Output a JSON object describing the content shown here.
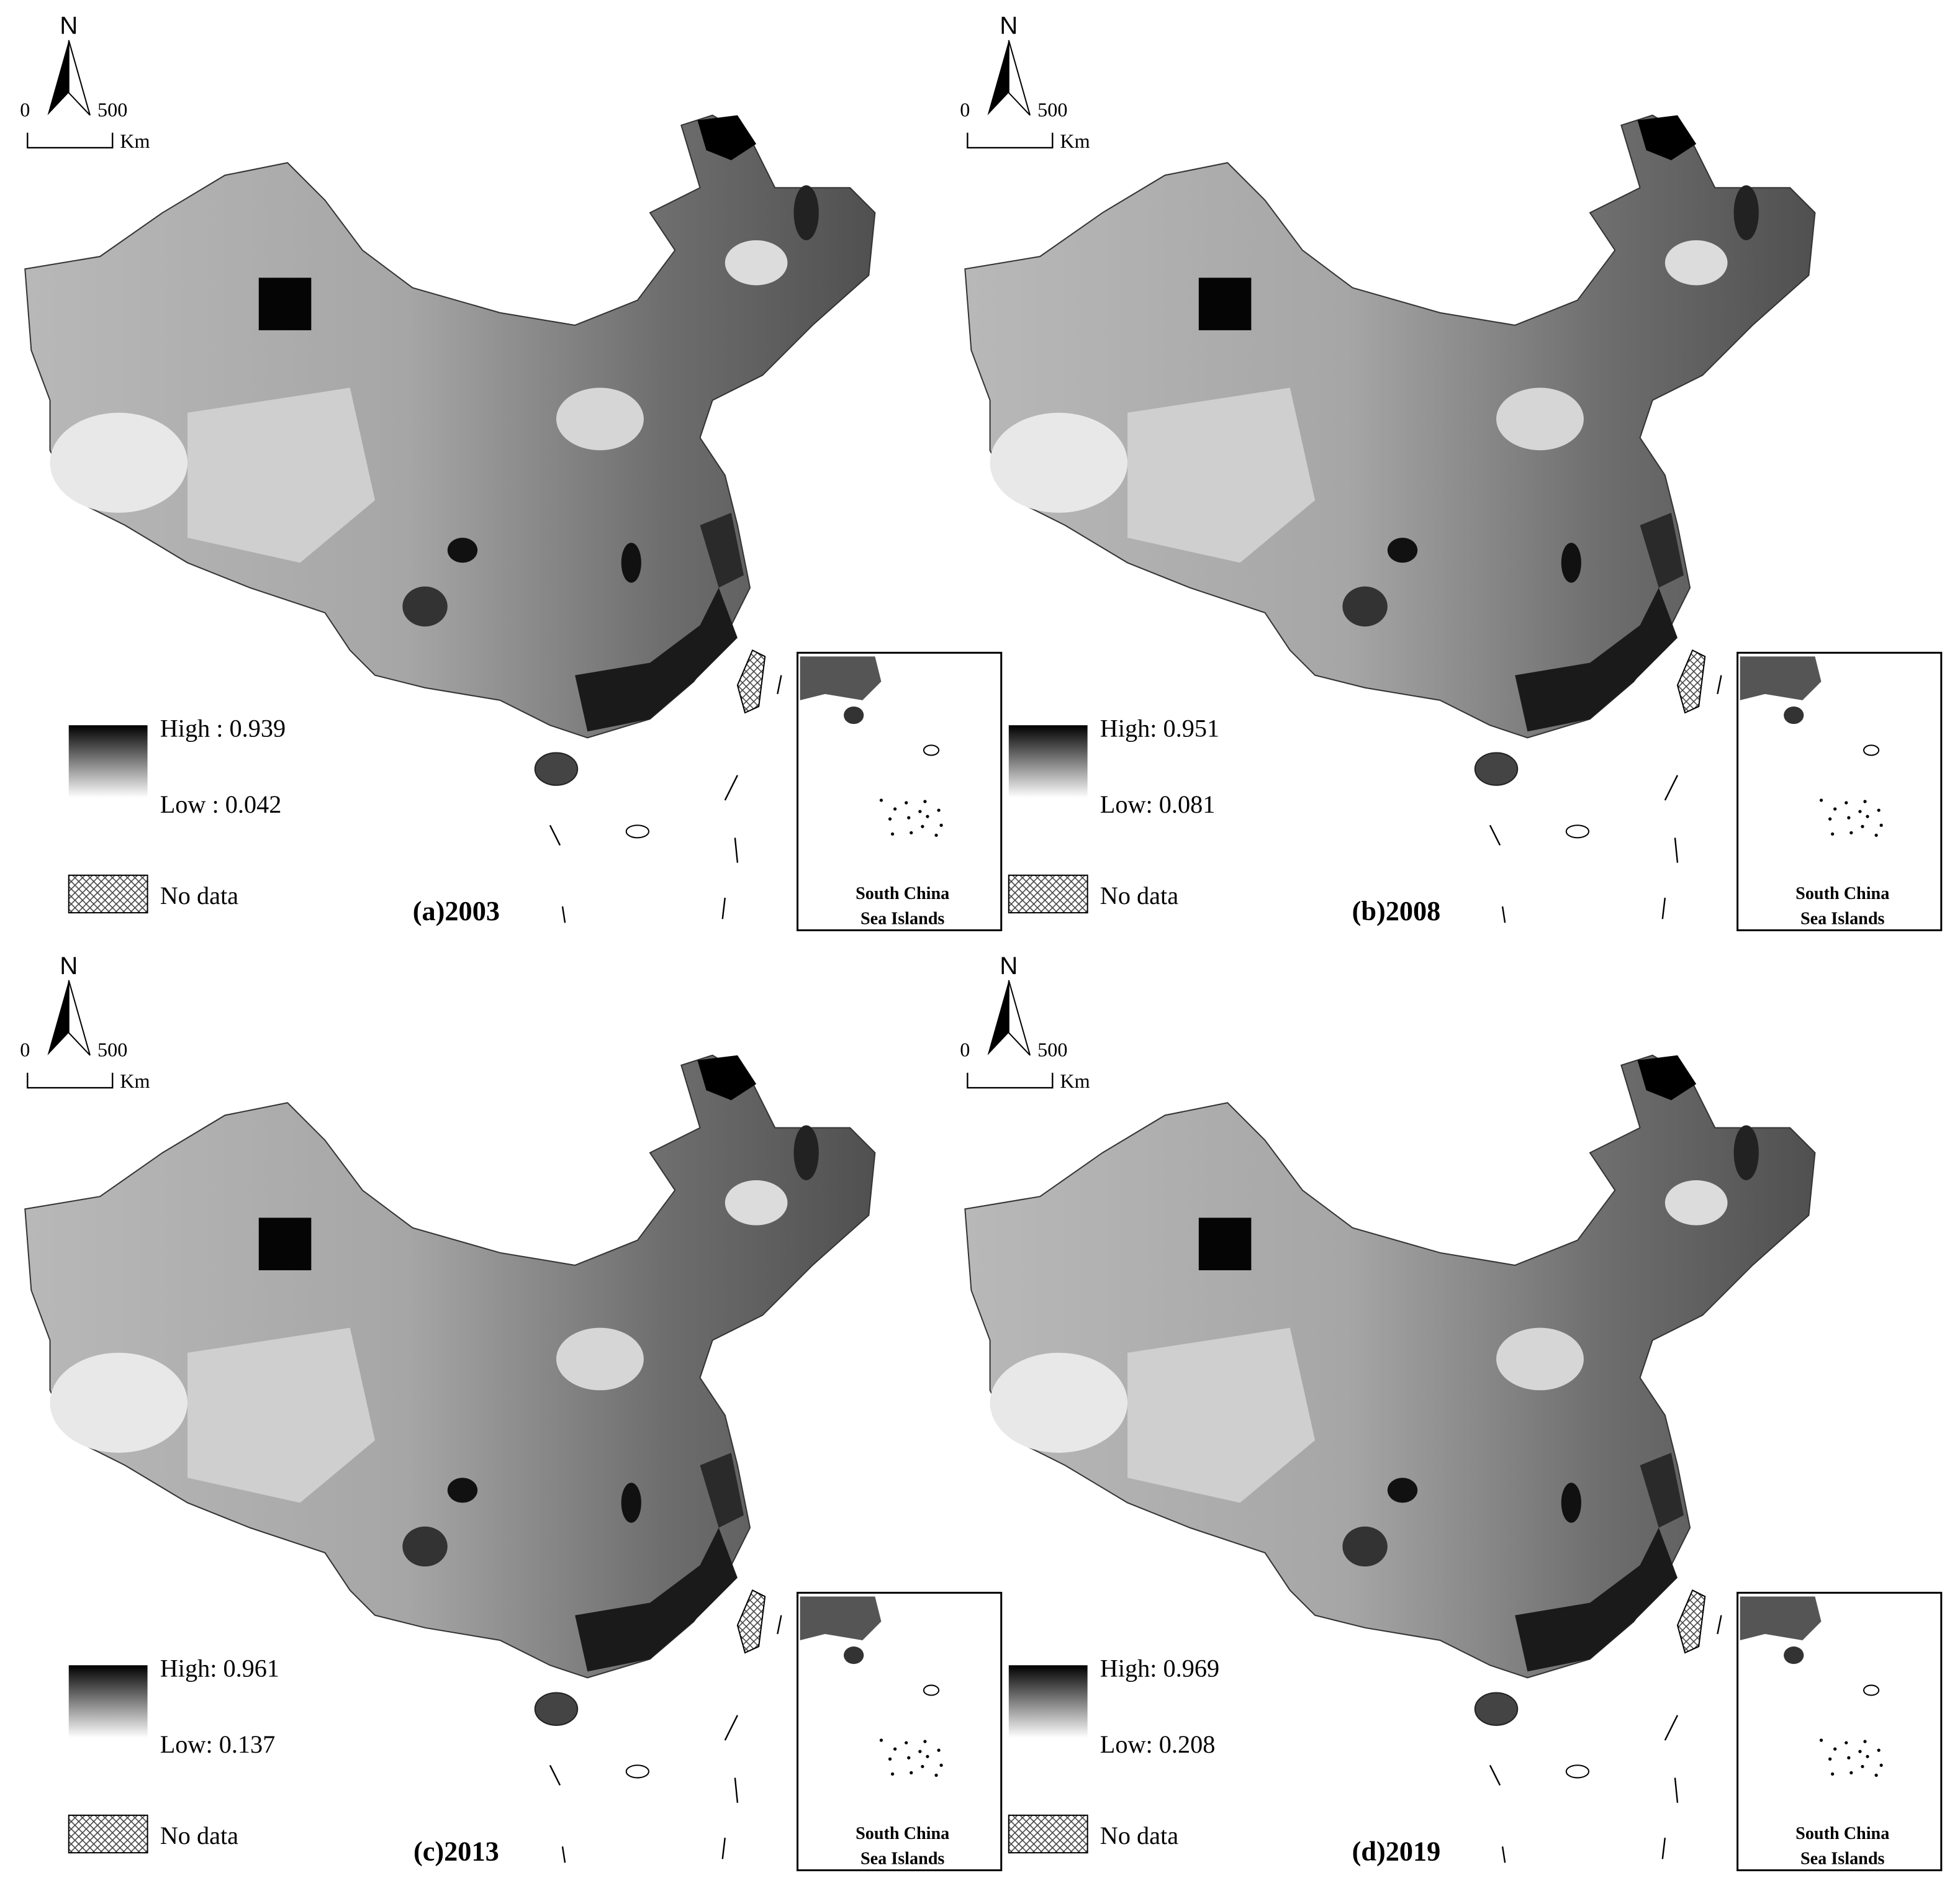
{
  "panels": [
    {
      "label": "(a)2003",
      "north": "N",
      "scale": {
        "start": "0",
        "end": "500",
        "unit": "Km"
      },
      "legend": {
        "high": "High : 0.939",
        "low": "Low : 0.042",
        "no_data": "No data"
      },
      "inset": {
        "line1": "South China",
        "line2": "Sea Islands"
      }
    },
    {
      "label": "(b)2008",
      "north": "N",
      "scale": {
        "start": "0",
        "end": "500",
        "unit": "Km"
      },
      "legend": {
        "high": "High: 0.951",
        "low": "Low: 0.081",
        "no_data": "No data"
      },
      "inset": {
        "line1": "South China",
        "line2": "Sea Islands"
      }
    },
    {
      "label": "(c)2013",
      "north": "N",
      "scale": {
        "start": "0",
        "end": "500",
        "unit": "Km"
      },
      "legend": {
        "high": "High: 0.961",
        "low": "Low: 0.137",
        "no_data": "No data"
      },
      "inset": {
        "line1": "South China",
        "line2": "Sea Islands"
      }
    },
    {
      "label": "(d)2019",
      "north": "N",
      "scale": {
        "start": "0",
        "end": "500",
        "unit": "Km"
      },
      "legend": {
        "high": "High: 0.969",
        "low": "Low: 0.208",
        "no_data": "No data"
      },
      "inset": {
        "line1": "South China",
        "line2": "Sea Islands"
      }
    }
  ]
}
